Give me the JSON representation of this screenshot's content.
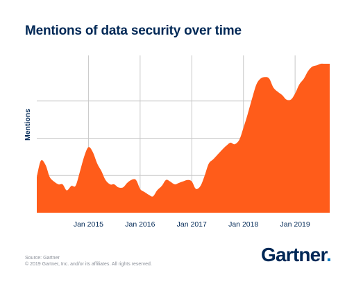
{
  "title": "Mentions of data security over time",
  "footer": {
    "source": "Source: Gartner",
    "copyright": "© 2019 Gartner, Inc. and/or its affiliates. All rights reserved."
  },
  "logo": {
    "text": "Gartner",
    "dot": "."
  },
  "colors": {
    "area": "#ff5c1a",
    "title": "#002856",
    "grid": "#c8c8c8",
    "logo_dot": "#0079c1"
  },
  "chart_data": {
    "type": "area",
    "title": "Mentions of data security over time",
    "xlabel": "",
    "ylabel": "Mentions",
    "x_range": [
      2014.0,
      2019.67
    ],
    "ylim": [
      0,
      100
    ],
    "x_ticks": [
      {
        "value": 2015,
        "label": "Jan 2015"
      },
      {
        "value": 2016,
        "label": "Jan 2016"
      },
      {
        "value": 2017,
        "label": "Jan 2017"
      },
      {
        "value": 2018,
        "label": "Jan 2018"
      },
      {
        "value": 2019,
        "label": "Jan 2019"
      }
    ],
    "y_gridlines": [
      25,
      50,
      75
    ],
    "grid": true,
    "series": [
      {
        "values": [
          [
            2014.0,
            24
          ],
          [
            2014.08,
            35
          ],
          [
            2014.17,
            32
          ],
          [
            2014.25,
            24
          ],
          [
            2014.33,
            21
          ],
          [
            2014.42,
            19
          ],
          [
            2014.5,
            19
          ],
          [
            2014.58,
            15
          ],
          [
            2014.67,
            18
          ],
          [
            2014.75,
            18
          ],
          [
            2014.83,
            27
          ],
          [
            2014.92,
            38
          ],
          [
            2015.0,
            44
          ],
          [
            2015.08,
            41
          ],
          [
            2015.17,
            33
          ],
          [
            2015.25,
            28
          ],
          [
            2015.33,
            22
          ],
          [
            2015.42,
            19
          ],
          [
            2015.5,
            19
          ],
          [
            2015.58,
            17
          ],
          [
            2015.67,
            17
          ],
          [
            2015.75,
            20
          ],
          [
            2015.83,
            22
          ],
          [
            2015.92,
            22
          ],
          [
            2016.0,
            16
          ],
          [
            2016.08,
            14
          ],
          [
            2016.17,
            12
          ],
          [
            2016.25,
            11
          ],
          [
            2016.33,
            15
          ],
          [
            2016.42,
            18
          ],
          [
            2016.5,
            22
          ],
          [
            2016.58,
            21
          ],
          [
            2016.67,
            19
          ],
          [
            2016.75,
            20
          ],
          [
            2016.83,
            21
          ],
          [
            2016.92,
            22
          ],
          [
            2017.0,
            21
          ],
          [
            2017.08,
            16
          ],
          [
            2017.17,
            18
          ],
          [
            2017.25,
            25
          ],
          [
            2017.33,
            33
          ],
          [
            2017.42,
            36
          ],
          [
            2017.5,
            39
          ],
          [
            2017.58,
            42
          ],
          [
            2017.67,
            45
          ],
          [
            2017.75,
            47
          ],
          [
            2017.83,
            46
          ],
          [
            2017.92,
            49
          ],
          [
            2018.0,
            57
          ],
          [
            2018.08,
            66
          ],
          [
            2018.17,
            77
          ],
          [
            2018.25,
            86
          ],
          [
            2018.33,
            90
          ],
          [
            2018.42,
            91
          ],
          [
            2018.5,
            90
          ],
          [
            2018.58,
            84
          ],
          [
            2018.67,
            81
          ],
          [
            2018.75,
            79
          ],
          [
            2018.83,
            76
          ],
          [
            2018.92,
            76
          ],
          [
            2019.0,
            80
          ],
          [
            2019.08,
            86
          ],
          [
            2019.17,
            90
          ],
          [
            2019.25,
            95
          ],
          [
            2019.33,
            98
          ],
          [
            2019.42,
            99
          ],
          [
            2019.5,
            100
          ],
          [
            2019.58,
            100
          ],
          [
            2019.67,
            100
          ]
        ]
      }
    ]
  }
}
